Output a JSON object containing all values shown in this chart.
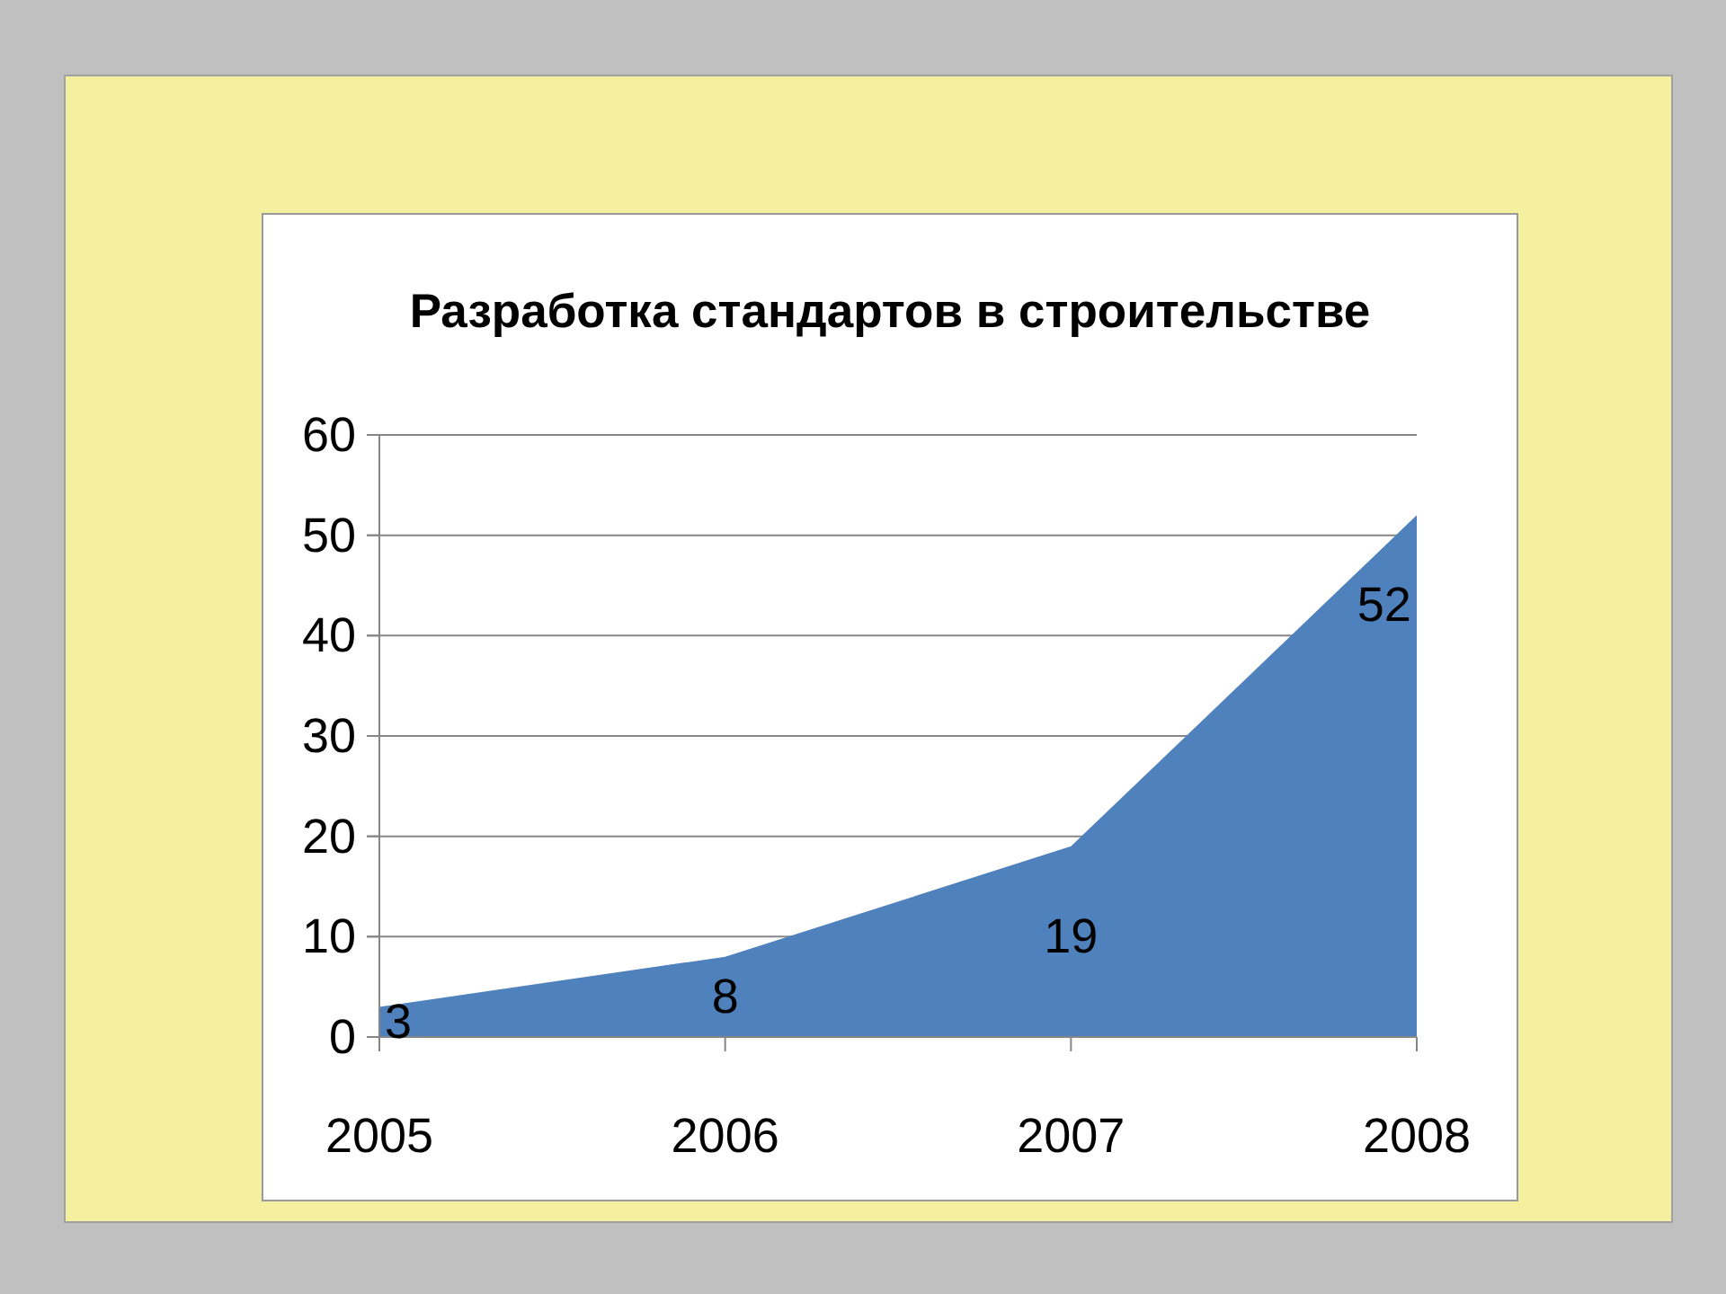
{
  "chart_data": {
    "type": "area",
    "title": "Разработка стандартов в строительстве",
    "categories": [
      "2005",
      "2006",
      "2007",
      "2008"
    ],
    "values": [
      3,
      8,
      19,
      52
    ],
    "color": "#4f81bd",
    "ylim": [
      0,
      60
    ],
    "yticks": [
      0,
      10,
      20,
      30,
      40,
      50,
      60
    ],
    "grid": "y",
    "data_labels": true
  }
}
